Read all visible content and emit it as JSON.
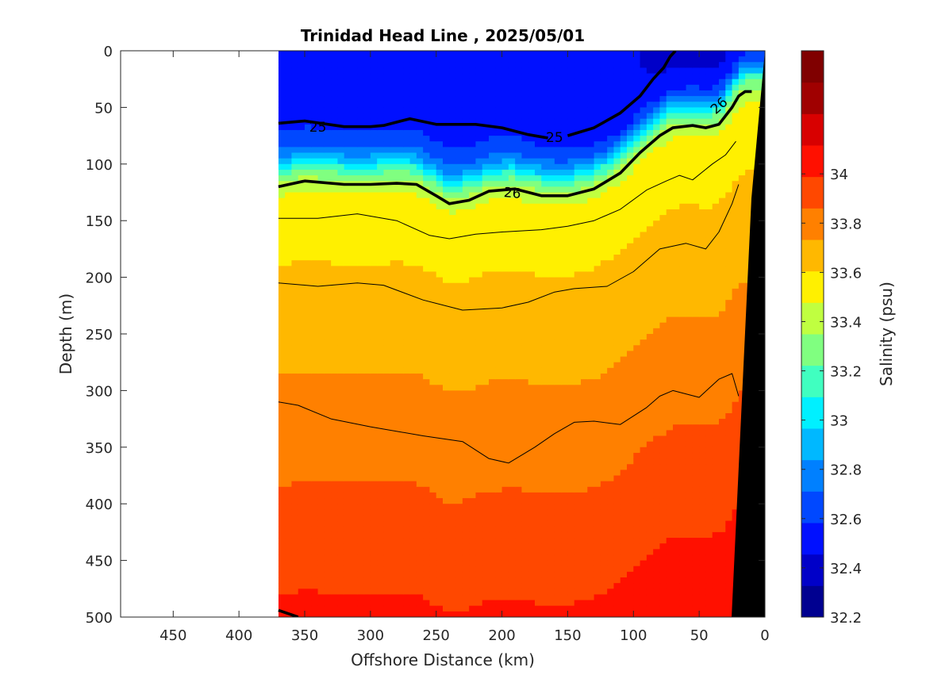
{
  "chart_data": {
    "type": "heatmap",
    "title": "Trinidad Head Line , 2025/05/01",
    "xlabel": "Offshore Distance (km)",
    "ylabel": "Depth (m)",
    "colorbar_label": "Salinity (psu)",
    "xlim": [
      490,
      0
    ],
    "ylim": [
      500,
      0
    ],
    "x_reversed": true,
    "y_reversed": true,
    "x_ticks": [
      450,
      400,
      350,
      300,
      250,
      200,
      150,
      100,
      50,
      0
    ],
    "y_ticks": [
      0,
      50,
      100,
      150,
      200,
      250,
      300,
      350,
      400,
      450,
      500
    ],
    "colorbar_ticks": [
      "34",
      "33.8",
      "33.6",
      "33.4",
      "33.2",
      "33",
      "32.8",
      "32.6",
      "32.4",
      "32.2"
    ],
    "colorbar_range": [
      32.2,
      34.5
    ],
    "colorbar_colors": [
      "#000090",
      "#0000C8",
      "#0010FF",
      "#0048FF",
      "#0080FF",
      "#00B8FF",
      "#00F0FF",
      "#40FFC0",
      "#80FF80",
      "#C0FF40",
      "#FFF000",
      "#FFB800",
      "#FF8000",
      "#FF4800",
      "#FF1000",
      "#D80000",
      "#A00000",
      "#800000"
    ],
    "data_extent_km": [
      370,
      0
    ],
    "series": [
      {
        "label": "25",
        "thick": true,
        "x": [
          370,
          350,
          320,
          300,
          290,
          270,
          250,
          220,
          200,
          180,
          165
        ],
        "y": [
          64,
          62,
          67,
          67,
          66,
          60,
          65,
          65,
          68,
          74,
          77
        ]
      },
      {
        "label": "25",
        "thick": true,
        "x": [
          150,
          130,
          110,
          95,
          85,
          77,
          72,
          68
        ],
        "y": [
          75,
          68,
          55,
          40,
          25,
          15,
          5,
          0
        ]
      },
      {
        "label": "26",
        "thick": true,
        "x": [
          370,
          350,
          320,
          300,
          280,
          265,
          250,
          240,
          225,
          210,
          190,
          170,
          150,
          130,
          110,
          95,
          80,
          70,
          55,
          45,
          35,
          25,
          20,
          15,
          10
        ],
        "y": [
          120,
          115,
          118,
          118,
          117,
          118,
          128,
          135,
          132,
          124,
          122,
          128,
          128,
          122,
          108,
          90,
          75,
          68,
          66,
          68,
          65,
          50,
          40,
          36,
          36
        ]
      },
      {
        "label": "",
        "thick": false,
        "x": [
          370,
          340,
          310,
          280,
          255,
          240,
          220,
          200,
          170,
          150,
          130,
          110,
          90,
          75,
          65,
          55,
          40,
          30,
          22
        ],
        "y": [
          148,
          148,
          144,
          150,
          163,
          166,
          162,
          160,
          158,
          155,
          150,
          140,
          123,
          115,
          110,
          114,
          100,
          92,
          80
        ]
      },
      {
        "label": "",
        "thick": false,
        "x": [
          370,
          340,
          310,
          290,
          260,
          230,
          200,
          180,
          160,
          145,
          120,
          100,
          80,
          60,
          45,
          35,
          25,
          20
        ],
        "y": [
          205,
          208,
          205,
          207,
          220,
          229,
          227,
          222,
          213,
          210,
          208,
          195,
          175,
          170,
          175,
          160,
          135,
          118
        ]
      },
      {
        "label": "",
        "thick": false,
        "x": [
          370,
          355,
          330,
          300,
          260,
          230,
          210,
          195,
          175,
          160,
          145,
          130,
          110,
          90,
          80,
          70,
          50,
          35,
          25,
          20
        ],
        "y": [
          310,
          313,
          325,
          332,
          340,
          345,
          360,
          364,
          350,
          338,
          328,
          327,
          330,
          315,
          305,
          300,
          306,
          290,
          285,
          305
        ]
      },
      {
        "label": "",
        "thick": true,
        "x": [
          370,
          360,
          355
        ],
        "y": [
          494,
          498,
          500
        ]
      }
    ]
  }
}
